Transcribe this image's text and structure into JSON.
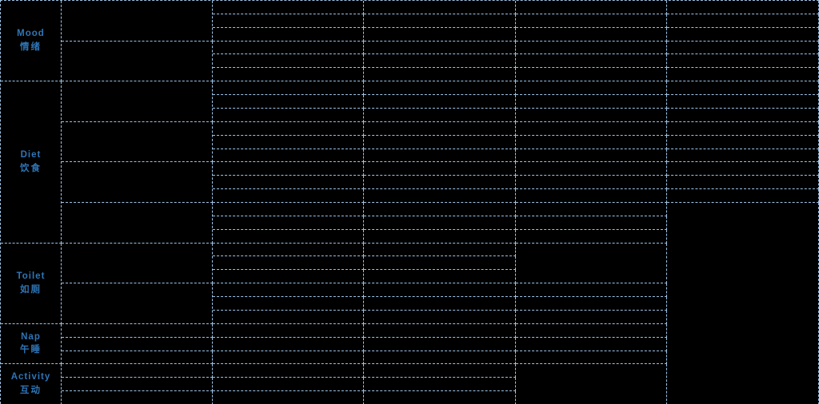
{
  "table": {
    "sections": [
      {
        "en": "Mood",
        "zh": "情绪"
      },
      {
        "en": "Diet",
        "zh": "饮食"
      },
      {
        "en": "Toilet",
        "zh": "如厕"
      },
      {
        "en": "Nap",
        "zh": "午睡"
      },
      {
        "en": "Activity",
        "zh": "互动"
      }
    ]
  },
  "colors": {
    "background": "#000000",
    "border": "#9dc3e6",
    "label_text": "#2e75b6"
  }
}
